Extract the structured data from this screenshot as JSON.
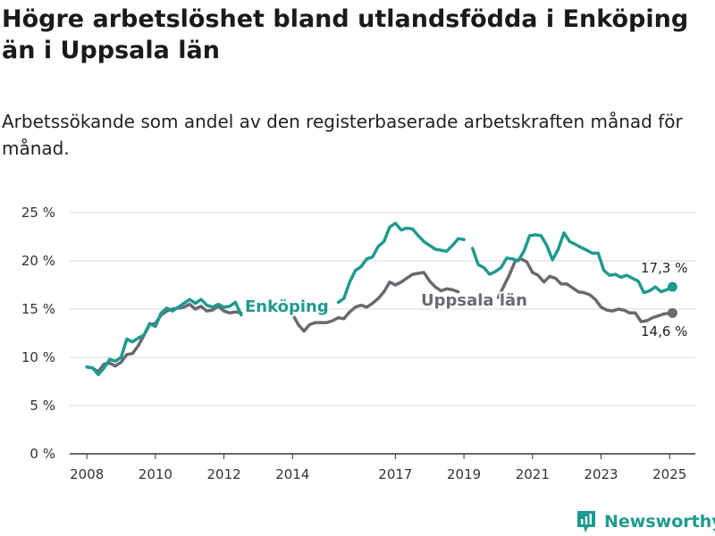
{
  "title": "Högre arbetslöshet bland utlandsfödda i Enköping än i Uppsala län",
  "subtitle": "Arbetssökande som andel av den registerbaserade arbetskraften månad för månad.",
  "brand": {
    "name": "Newsworthy",
    "icon": "newsworthy-logo-icon"
  },
  "colors": {
    "enkoping": "#1f9a8f",
    "uppsala": "#6b6870",
    "grid": "#d9d9d9",
    "axis": "#333333"
  },
  "chart_data": {
    "type": "line",
    "title": "Högre arbetslöshet bland utlandsfödda i Enköping än i Uppsala län",
    "xlim": [
      "2007-07",
      "2025-10"
    ],
    "ylim": [
      0,
      25
    ],
    "y_ticks": [
      0,
      5,
      10,
      15,
      20,
      25
    ],
    "y_tick_labels": [
      "0 %",
      "5 %",
      "10 %",
      "15 %",
      "20 %",
      "25 %"
    ],
    "x_ticks": [
      "2008-01",
      "2010-01",
      "2012-01",
      "2014-01",
      "2017-01",
      "2019-01",
      "2021-01",
      "2023-01",
      "2025-01"
    ],
    "x_tick_labels": [
      "2008",
      "2010",
      "2012",
      "2014",
      "2017",
      "2019",
      "2021",
      "2023",
      "2025"
    ],
    "grid": true,
    "series": [
      {
        "name": "Enköping",
        "color": "#1f9a8f",
        "end_label": "17,3 %",
        "segments": [
          [
            [
              "2008-01",
              9.0
            ],
            [
              "2008-03",
              8.9
            ],
            [
              "2008-05",
              8.2
            ],
            [
              "2008-07",
              8.9
            ],
            [
              "2008-09",
              9.8
            ],
            [
              "2008-11",
              9.6
            ],
            [
              "2009-01",
              10.0
            ],
            [
              "2009-03",
              11.9
            ],
            [
              "2009-05",
              11.6
            ],
            [
              "2009-07",
              12.0
            ],
            [
              "2009-09",
              12.3
            ],
            [
              "2009-11",
              13.5
            ],
            [
              "2010-01",
              13.2
            ],
            [
              "2010-03",
              14.6
            ],
            [
              "2010-05",
              15.1
            ],
            [
              "2010-07",
              14.8
            ],
            [
              "2010-09",
              15.2
            ],
            [
              "2010-11",
              15.6
            ],
            [
              "2011-01",
              16.0
            ],
            [
              "2011-03",
              15.6
            ],
            [
              "2011-05",
              16.0
            ],
            [
              "2011-07",
              15.4
            ],
            [
              "2011-09",
              15.2
            ],
            [
              "2011-11",
              15.5
            ],
            [
              "2012-01",
              15.2
            ],
            [
              "2012-03",
              15.3
            ],
            [
              "2012-05",
              15.7
            ],
            [
              "2012-07",
              14.4
            ]
          ],
          [
            [
              "2015-05",
              15.7
            ],
            [
              "2015-07",
              16.1
            ],
            [
              "2015-09",
              17.8
            ],
            [
              "2015-11",
              19.0
            ],
            [
              "2016-01",
              19.4
            ],
            [
              "2016-03",
              20.2
            ],
            [
              "2016-05",
              20.4
            ],
            [
              "2016-07",
              21.5
            ],
            [
              "2016-09",
              22.0
            ],
            [
              "2016-11",
              23.5
            ],
            [
              "2017-01",
              23.9
            ],
            [
              "2017-03",
              23.2
            ],
            [
              "2017-05",
              23.4
            ],
            [
              "2017-07",
              23.3
            ],
            [
              "2017-09",
              22.6
            ],
            [
              "2017-11",
              22.0
            ],
            [
              "2018-01",
              21.6
            ],
            [
              "2018-03",
              21.2
            ],
            [
              "2018-05",
              21.1
            ],
            [
              "2018-07",
              21.0
            ],
            [
              "2018-09",
              21.6
            ],
            [
              "2018-11",
              22.3
            ],
            [
              "2019-01",
              22.2
            ]
          ],
          [
            [
              "2019-04",
              21.3
            ],
            [
              "2019-06",
              19.6
            ],
            [
              "2019-08",
              19.3
            ],
            [
              "2019-10",
              18.6
            ],
            [
              "2019-12",
              18.9
            ],
            [
              "2020-02",
              19.3
            ],
            [
              "2020-04",
              20.3
            ],
            [
              "2020-06",
              20.2
            ],
            [
              "2020-08",
              20.0
            ],
            [
              "2020-10",
              21.0
            ],
            [
              "2020-12",
              22.6
            ],
            [
              "2021-02",
              22.7
            ],
            [
              "2021-04",
              22.6
            ],
            [
              "2021-06",
              21.6
            ],
            [
              "2021-08",
              20.1
            ],
            [
              "2021-10",
              21.2
            ],
            [
              "2021-12",
              22.9
            ],
            [
              "2022-02",
              22.0
            ],
            [
              "2022-04",
              21.7
            ],
            [
              "2022-06",
              21.4
            ],
            [
              "2022-08",
              21.1
            ],
            [
              "2022-10",
              20.8
            ],
            [
              "2022-12",
              20.8
            ],
            [
              "2023-02",
              19.0
            ],
            [
              "2023-04",
              18.5
            ],
            [
              "2023-06",
              18.6
            ],
            [
              "2023-08",
              18.3
            ],
            [
              "2023-10",
              18.5
            ],
            [
              "2023-12",
              18.2
            ],
            [
              "2024-02",
              17.9
            ],
            [
              "2024-04",
              16.7
            ],
            [
              "2024-06",
              16.9
            ],
            [
              "2024-08",
              17.3
            ],
            [
              "2024-10",
              16.8
            ],
            [
              "2024-12",
              17.0
            ],
            [
              "2025-02",
              17.3
            ]
          ]
        ]
      },
      {
        "name": "Uppsala län",
        "color": "#6b6870",
        "end_label": "14,6 %",
        "segments": [
          [
            [
              "2008-01",
              9.0
            ],
            [
              "2008-03",
              8.9
            ],
            [
              "2008-05",
              8.5
            ],
            [
              "2008-07",
              9.3
            ],
            [
              "2008-09",
              9.4
            ],
            [
              "2008-11",
              9.1
            ],
            [
              "2009-01",
              9.5
            ],
            [
              "2009-03",
              10.3
            ],
            [
              "2009-05",
              10.4
            ],
            [
              "2009-07",
              11.2
            ],
            [
              "2009-09",
              12.3
            ],
            [
              "2009-11",
              13.4
            ],
            [
              "2010-01",
              13.5
            ],
            [
              "2010-03",
              14.4
            ],
            [
              "2010-05",
              14.8
            ],
            [
              "2010-07",
              15.0
            ],
            [
              "2010-09",
              15.1
            ],
            [
              "2010-11",
              15.2
            ],
            [
              "2011-01",
              15.5
            ],
            [
              "2011-03",
              15.0
            ],
            [
              "2011-05",
              15.3
            ],
            [
              "2011-07",
              14.8
            ],
            [
              "2011-09",
              14.9
            ],
            [
              "2011-11",
              15.3
            ],
            [
              "2012-01",
              14.8
            ],
            [
              "2012-03",
              14.6
            ],
            [
              "2012-05",
              14.7
            ],
            [
              "2012-07",
              14.6
            ]
          ],
          [
            [
              "2014-01",
              14.5
            ],
            [
              "2014-03",
              13.4
            ],
            [
              "2014-05",
              12.7
            ],
            [
              "2014-07",
              13.4
            ],
            [
              "2014-09",
              13.6
            ],
            [
              "2014-11",
              13.6
            ],
            [
              "2015-01",
              13.6
            ],
            [
              "2015-03",
              13.8
            ],
            [
              "2015-05",
              14.1
            ],
            [
              "2015-07",
              14.0
            ],
            [
              "2015-09",
              14.7
            ],
            [
              "2015-11",
              15.2
            ],
            [
              "2016-01",
              15.4
            ],
            [
              "2016-03",
              15.2
            ],
            [
              "2016-05",
              15.6
            ],
            [
              "2016-07",
              16.1
            ],
            [
              "2016-09",
              16.8
            ],
            [
              "2016-11",
              17.8
            ],
            [
              "2017-01",
              17.5
            ],
            [
              "2017-03",
              17.8
            ],
            [
              "2017-05",
              18.2
            ],
            [
              "2017-07",
              18.6
            ],
            [
              "2017-09",
              18.7
            ],
            [
              "2017-11",
              18.8
            ],
            [
              "2018-01",
              17.9
            ],
            [
              "2018-03",
              17.3
            ],
            [
              "2018-05",
              16.9
            ],
            [
              "2018-07",
              17.1
            ],
            [
              "2018-09",
              17.0
            ],
            [
              "2018-11",
              16.8
            ]
          ],
          [
            [
              "2020-01",
              16.2
            ],
            [
              "2020-03",
              17.4
            ],
            [
              "2020-05",
              18.6
            ],
            [
              "2020-07",
              20.0
            ],
            [
              "2020-09",
              20.2
            ],
            [
              "2020-11",
              19.9
            ],
            [
              "2021-01",
              18.8
            ],
            [
              "2021-03",
              18.5
            ],
            [
              "2021-05",
              17.8
            ],
            [
              "2021-07",
              18.4
            ],
            [
              "2021-09",
              18.2
            ],
            [
              "2021-11",
              17.6
            ],
            [
              "2022-01",
              17.6
            ],
            [
              "2022-03",
              17.2
            ],
            [
              "2022-05",
              16.8
            ],
            [
              "2022-07",
              16.7
            ],
            [
              "2022-09",
              16.5
            ],
            [
              "2022-11",
              16.0
            ],
            [
              "2023-01",
              15.2
            ],
            [
              "2023-03",
              14.9
            ],
            [
              "2023-05",
              14.8
            ],
            [
              "2023-07",
              15.0
            ],
            [
              "2023-09",
              14.9
            ],
            [
              "2023-11",
              14.6
            ],
            [
              "2024-01",
              14.6
            ],
            [
              "2024-03",
              13.7
            ],
            [
              "2024-05",
              13.8
            ],
            [
              "2024-07",
              14.1
            ],
            [
              "2024-09",
              14.3
            ],
            [
              "2024-11",
              14.5
            ],
            [
              "2025-02",
              14.6
            ]
          ]
        ]
      }
    ]
  }
}
